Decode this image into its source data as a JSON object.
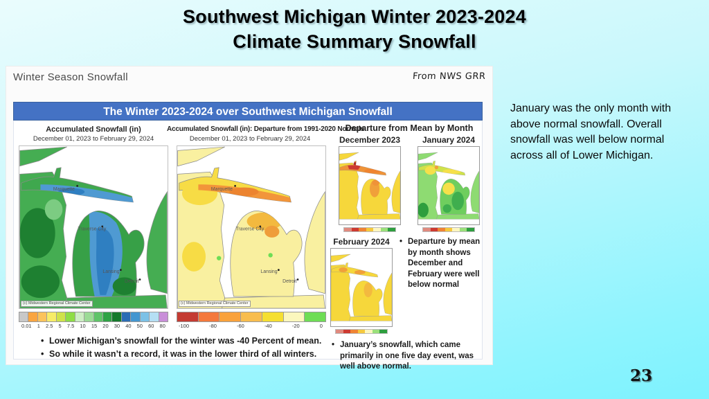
{
  "slide": {
    "title_line1": "Southwest Michigan Winter 2023-2024",
    "title_line2": "Climate Summary Snowfall",
    "side_note": "January was the only month with above normal snowfall. Overall snowfall was well below normal across all of Lower Michigan.",
    "page_number": "23"
  },
  "panel": {
    "header_left": "Winter Season Snowfall",
    "header_right": "From NWS GRR",
    "banner_title": "The Winter 2023-2024 over Southwest Michigan Snowfall",
    "banner_color": "#4472c4",
    "cities": {
      "marquette": "Marquette",
      "traverse_city": "Traverse City",
      "lansing": "Lansing",
      "detroit": "Detroit"
    },
    "map1": {
      "title": "Accumulated Snowfall (in)",
      "subtitle": "December 01, 2023 to February 29, 2024",
      "attribution": "(c) Midwestern Regional Climate Center",
      "colorbar": {
        "labels": [
          "0.01",
          "1",
          "2.5",
          "5",
          "7.5",
          "10",
          "15",
          "20",
          "30",
          "40",
          "50",
          "60",
          "80"
        ],
        "colors": [
          "#c8c8c8",
          "#f9a541",
          "#fbc35b",
          "#f7ec67",
          "#cfe24a",
          "#8edd45",
          "#cdeec4",
          "#9bdb96",
          "#5fc468",
          "#2ea344",
          "#157a2c",
          "#2b6cb4",
          "#4496d0",
          "#7cc1e6",
          "#b5dff4",
          "#c98fd9"
        ]
      }
    },
    "map2": {
      "title": "Accumulated Snowfall (in): Departure from 1991-2020 Normals",
      "subtitle": "December 01, 2023 to February 29, 2024",
      "attribution": "(c) Midwestern Regional Climate Center",
      "colorbar": {
        "labels": [
          "-100",
          "-80",
          "-60",
          "-40",
          "-20",
          "0"
        ],
        "colors": [
          "#c43b32",
          "#f4793c",
          "#f9a23b",
          "#f8bd4e",
          "#f5df32",
          "#fbf7bd",
          "#6edd55"
        ]
      }
    },
    "monthly": {
      "title": "Departure from Mean by Month",
      "maps": [
        {
          "label": "December 2023"
        },
        {
          "label": "January 2024"
        },
        {
          "label": "February 2024"
        }
      ],
      "strip_colors": [
        "#e08a7e",
        "#cd3a31",
        "#ef8435",
        "#f5c93e",
        "#fdf6c0",
        "#9be07b",
        "#2e9e3e"
      ],
      "bullet_departure": "Departure by mean by month shows December and February were well below normal",
      "bullet_january": "January’s snowfall, which came primarily in one five day event, was well above normal."
    },
    "bottom_bullets": [
      "Lower Michigan’s snowfall for the winter was -40 Percent of mean.",
      "So while it wasn’t a record, it was in the lower third of all winters."
    ]
  }
}
